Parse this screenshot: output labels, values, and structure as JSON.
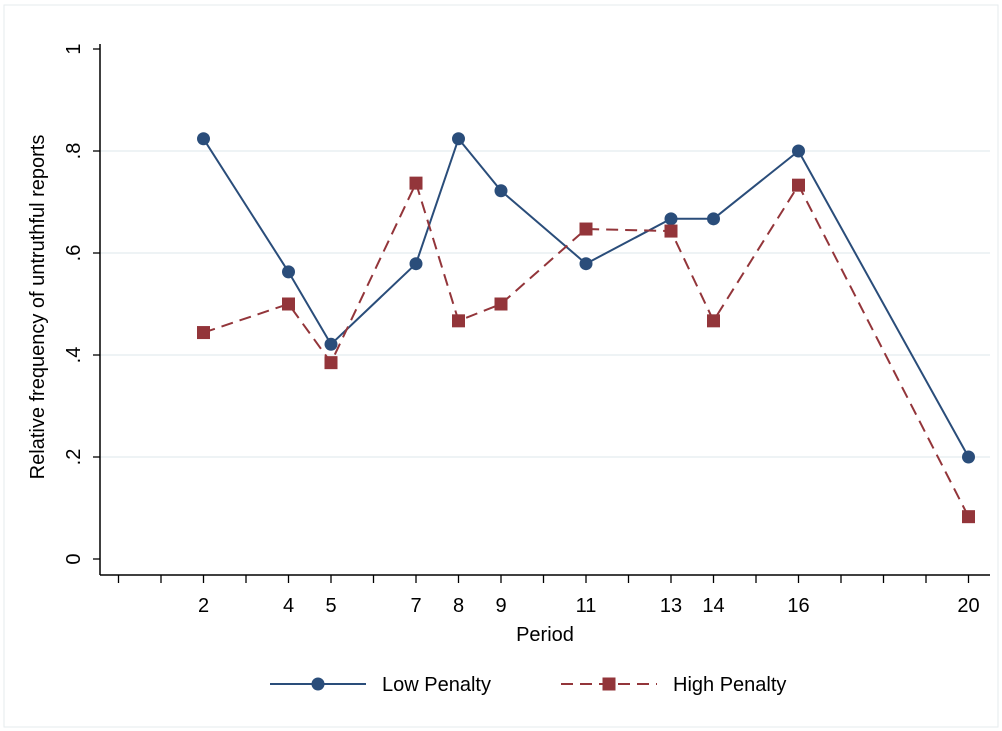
{
  "chart_data": {
    "type": "line",
    "title": "",
    "xlabel": "Period",
    "ylabel": "Relative frequency of untruthful reports",
    "xlim": [
      0,
      20.4
    ],
    "ylim": [
      0,
      1
    ],
    "x_tick_labels": [
      "2",
      "4",
      "5",
      "7",
      "8",
      "9",
      "11",
      "13",
      "14",
      "16",
      "20"
    ],
    "x_tick_values": [
      2,
      4,
      5,
      7,
      8,
      9,
      11,
      13,
      14,
      16,
      20
    ],
    "x_minor_ticks": [
      0,
      1,
      2,
      3,
      4,
      5,
      6,
      7,
      8,
      9,
      10,
      11,
      12,
      13,
      14,
      15,
      16,
      17,
      18,
      19,
      20
    ],
    "y_tick_labels": [
      "0",
      ".2",
      ".4",
      ".6",
      ".8",
      "1"
    ],
    "y_tick_values": [
      0,
      0.2,
      0.4,
      0.6,
      0.8,
      1
    ],
    "grid": true,
    "legend_position": "bottom",
    "series": [
      {
        "name": "Low Penalty",
        "color": "#2a4d7a",
        "marker": "circle",
        "line_style": "solid",
        "x": [
          2,
          4,
          5,
          7,
          8,
          9,
          11,
          13,
          14,
          16,
          20
        ],
        "values": [
          0.824,
          0.563,
          0.421,
          0.579,
          0.824,
          0.722,
          0.579,
          0.667,
          0.667,
          0.8,
          0.2
        ]
      },
      {
        "name": "High Penalty",
        "color": "#93353a",
        "marker": "square",
        "line_style": "dashed",
        "x": [
          2,
          4,
          5,
          7,
          8,
          9,
          11,
          13,
          14,
          16,
          20
        ],
        "values": [
          0.444,
          0.5,
          0.385,
          0.737,
          0.467,
          0.5,
          0.647,
          0.643,
          0.467,
          0.733,
          0.083
        ]
      }
    ]
  }
}
